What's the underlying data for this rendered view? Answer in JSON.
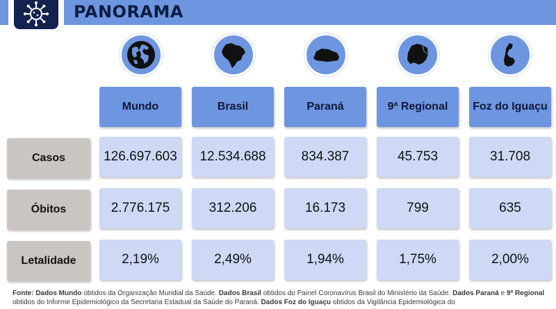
{
  "header": {
    "title": "PANORAMA",
    "logo_icon": "virus-icon",
    "bar_color": "#6e96e0"
  },
  "columns": [
    {
      "label": "Mundo",
      "icon": "globe-icon"
    },
    {
      "label": "Brasil",
      "icon": "brazil-map-icon"
    },
    {
      "label": "Paraná",
      "icon": "parana-map-icon"
    },
    {
      "label": "9ª Regional",
      "icon": "regional-map-icon"
    },
    {
      "label": "Foz do Iguaçu",
      "icon": "foz-map-icon"
    }
  ],
  "rows": [
    {
      "label": "Casos",
      "values": [
        "126.697.603",
        "12.534.688",
        "834.387",
        "45.753",
        "31.708"
      ]
    },
    {
      "label": "Óbitos",
      "values": [
        "2.776.175",
        "312.206",
        "16.173",
        "799",
        "635"
      ]
    },
    {
      "label": "Letalidade",
      "values": [
        "2,19%",
        "2,49%",
        "1,94%",
        "1,75%",
        "2,00%"
      ]
    }
  ],
  "footer": {
    "p1": "Fonte: ",
    "p2": "Dados Mundo",
    "p3": " obtidos da Organização Mundial da Saúde. ",
    "p4": "Dados Brasil",
    "p5": " obtidos do Painel Coronavírus Brasil do Ministério da Saúde. ",
    "p6": "Dados Paraná",
    "p7": " e ",
    "p8": "9ª Regional",
    "p9": " obtidos do Informe Epidemiológico da Secretaria Estadual da Saúde do Paraná. ",
    "p10": "Dados Foz do Iguaçu",
    "p11": " obtidos da Vigilância Epidemiológica do"
  },
  "colors": {
    "accent": "#6e96e0",
    "cell": "#cdd9f5",
    "row_header": "#cbc5c2",
    "dark": "#14224f"
  }
}
